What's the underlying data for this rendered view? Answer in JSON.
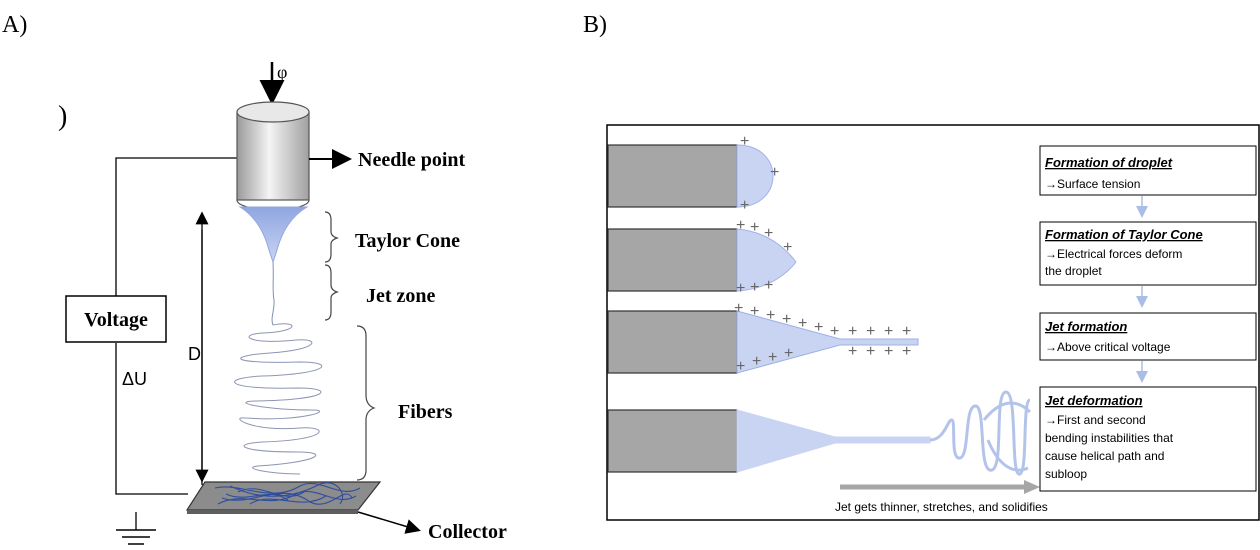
{
  "panel_a": {
    "label": "A)",
    "stray_mark": ")",
    "flow_symbol": "φ",
    "needle_label": "Needle point",
    "taylor_label": "Taylor Cone",
    "jet_label": "Jet zone",
    "voltage_label": "Voltage",
    "delta_u_label": "ΔU",
    "distance_label": "D",
    "fibers_label": "Fibers",
    "collector_label": "Collector"
  },
  "panel_b": {
    "label": "B)",
    "steps": [
      {
        "title": "Formation of droplet",
        "desc_lines": [
          "→Surface tension"
        ]
      },
      {
        "title": "Formation of Taylor Cone",
        "desc_lines": [
          "→Electrical forces deform",
          "the droplet"
        ]
      },
      {
        "title": "Jet formation",
        "desc_lines": [
          "→Above critical voltage"
        ]
      },
      {
        "title": "Jet deformation",
        "desc_lines": [
          "→First and second",
          "bending instabilities that",
          "cause helical path and",
          "subloop"
        ]
      }
    ],
    "arrow_caption": "Jet gets thinner, stretches, and solidifies",
    "charge_symbol": "+"
  },
  "colors": {
    "fluid_blue": "#8fa6e0",
    "fluid_light": "#c9d4f3",
    "connector_blue": "#a9bde6",
    "needle_gray": "#a6a6a6",
    "collector_gray": "#8c8c8c",
    "fiber_blue": "#2f4da0"
  }
}
